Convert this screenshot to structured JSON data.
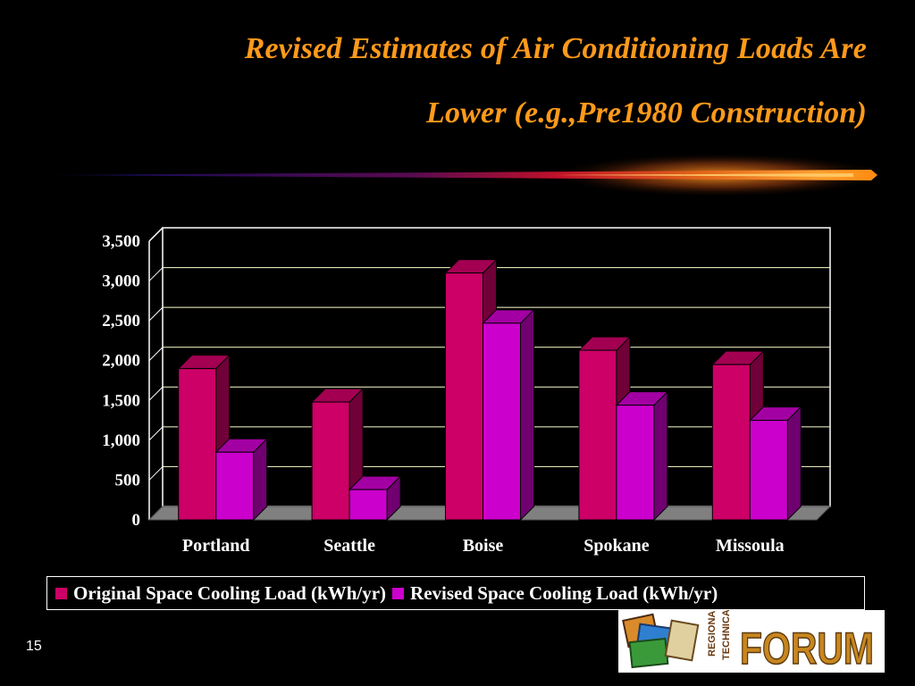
{
  "slide": {
    "title_line_1": "Revised Estimates of Air Conditioning Loads Are",
    "title_line_2": "Lower (e.g.,Pre1980  Construction)",
    "page_number": "15",
    "logo_text": "FORUM",
    "logo_side_text_1": "REGIONAL",
    "logo_side_text_2": "TECHNICAL"
  },
  "colors": {
    "title": "#ff9a1a",
    "series_original": "#cc0066",
    "series_revised": "#cc00cc",
    "plot_border": "#ffffff",
    "gridlines": "#ffffcc",
    "floor": "#808080"
  },
  "chart_data": {
    "type": "bar",
    "style": "3d-clustered-column",
    "categories": [
      "Portland",
      "Seattle",
      "Boise",
      "Spokane",
      "Missoula"
    ],
    "series": [
      {
        "name": "Original Space Cooling Load (kWh/yr)",
        "values": [
          1900,
          1480,
          3100,
          2130,
          1950
        ]
      },
      {
        "name": "Revised Space Cooling Load (kWh/yr)",
        "values": [
          850,
          380,
          2470,
          1440,
          1250
        ]
      }
    ],
    "ylim": [
      0,
      3500
    ],
    "yticks": [
      "0",
      "500",
      "1,000",
      "1,500",
      "2,000",
      "2,500",
      "3,000",
      "3,500"
    ],
    "ytick_values": [
      0,
      500,
      1000,
      1500,
      2000,
      2500,
      3000,
      3500
    ],
    "grid": true,
    "legend_position": "bottom",
    "title": "",
    "xlabel": "",
    "ylabel": ""
  }
}
